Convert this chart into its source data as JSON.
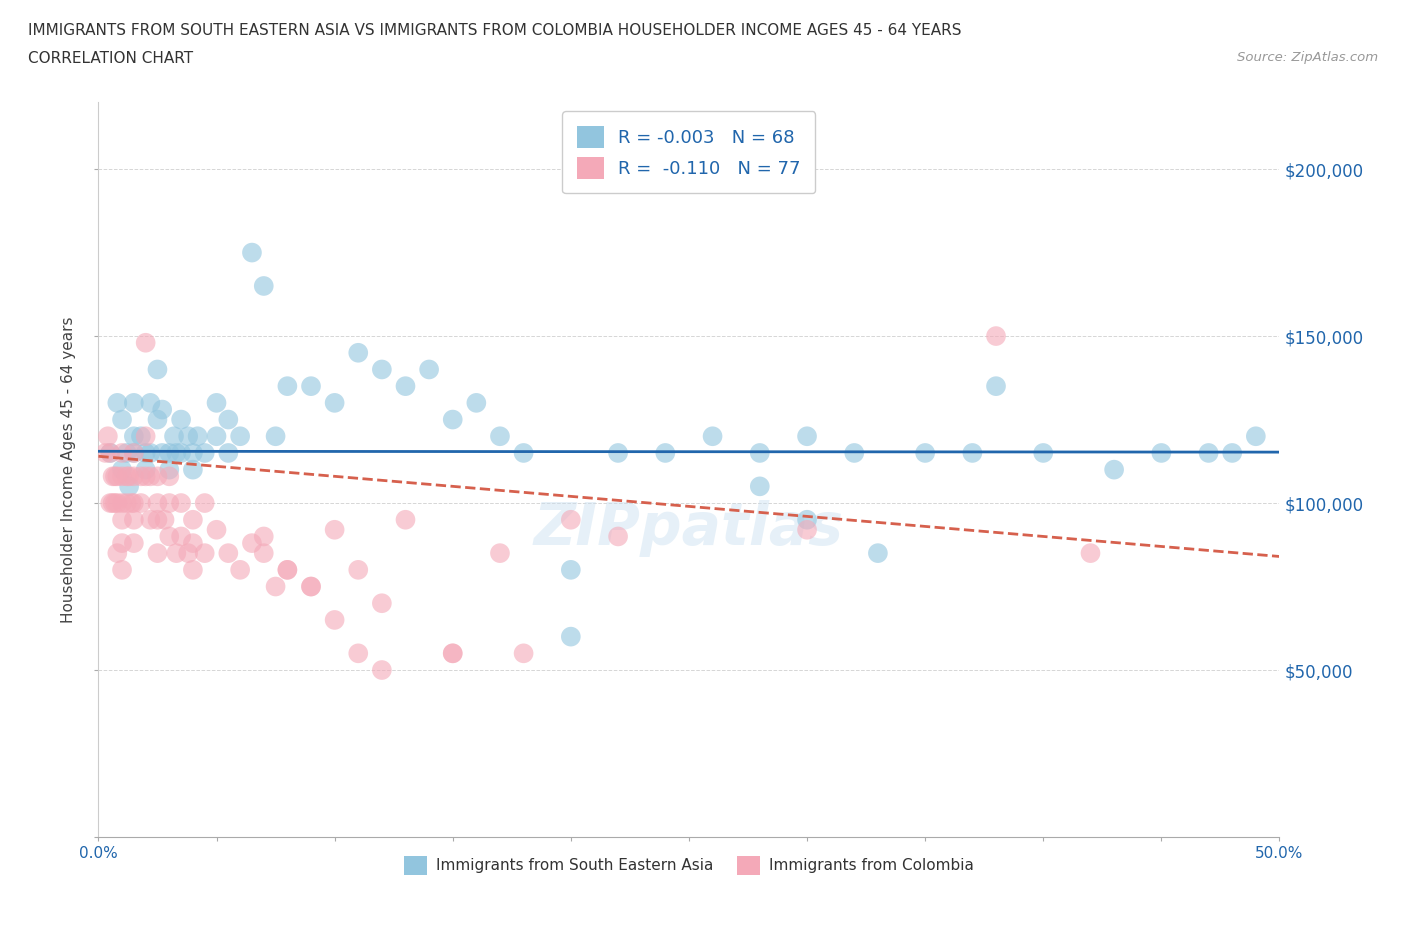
{
  "title_line1": "IMMIGRANTS FROM SOUTH EASTERN ASIA VS IMMIGRANTS FROM COLOMBIA HOUSEHOLDER INCOME AGES 45 - 64 YEARS",
  "title_line2": "CORRELATION CHART",
  "source_text": "Source: ZipAtlas.com",
  "ylabel": "Householder Income Ages 45 - 64 years",
  "xlim": [
    0.0,
    0.5
  ],
  "ylim": [
    0,
    220000
  ],
  "yticks": [
    0,
    50000,
    100000,
    150000,
    200000
  ],
  "right_yticklabels": [
    "",
    "$50,000",
    "$100,000",
    "$150,000",
    "$200,000"
  ],
  "blue_color": "#92c5de",
  "pink_color": "#f4a9b8",
  "blue_line_color": "#2166ac",
  "pink_line_color": "#d6604d",
  "blue_scatter_x": [
    0.005,
    0.008,
    0.01,
    0.01,
    0.012,
    0.013,
    0.015,
    0.015,
    0.015,
    0.018,
    0.02,
    0.02,
    0.022,
    0.022,
    0.025,
    0.025,
    0.027,
    0.027,
    0.03,
    0.03,
    0.032,
    0.033,
    0.035,
    0.035,
    0.038,
    0.04,
    0.04,
    0.042,
    0.045,
    0.05,
    0.05,
    0.055,
    0.055,
    0.06,
    0.065,
    0.07,
    0.075,
    0.08,
    0.09,
    0.1,
    0.11,
    0.12,
    0.13,
    0.14,
    0.15,
    0.16,
    0.17,
    0.18,
    0.2,
    0.22,
    0.24,
    0.26,
    0.28,
    0.3,
    0.32,
    0.35,
    0.37,
    0.4,
    0.43,
    0.45,
    0.47,
    0.48,
    0.49,
    0.38,
    0.28,
    0.3,
    0.33,
    0.2
  ],
  "blue_scatter_y": [
    115000,
    130000,
    125000,
    110000,
    115000,
    105000,
    130000,
    120000,
    115000,
    120000,
    115000,
    110000,
    130000,
    115000,
    140000,
    125000,
    128000,
    115000,
    115000,
    110000,
    120000,
    115000,
    125000,
    115000,
    120000,
    115000,
    110000,
    120000,
    115000,
    130000,
    120000,
    125000,
    115000,
    120000,
    175000,
    165000,
    120000,
    135000,
    135000,
    130000,
    145000,
    140000,
    135000,
    140000,
    125000,
    130000,
    120000,
    115000,
    80000,
    115000,
    115000,
    120000,
    115000,
    120000,
    115000,
    115000,
    115000,
    115000,
    110000,
    115000,
    115000,
    115000,
    120000,
    135000,
    105000,
    95000,
    85000,
    60000
  ],
  "pink_scatter_x": [
    0.003,
    0.004,
    0.005,
    0.005,
    0.006,
    0.006,
    0.007,
    0.007,
    0.008,
    0.008,
    0.008,
    0.01,
    0.01,
    0.01,
    0.01,
    0.01,
    0.01,
    0.012,
    0.012,
    0.013,
    0.014,
    0.015,
    0.015,
    0.015,
    0.015,
    0.015,
    0.018,
    0.018,
    0.02,
    0.02,
    0.02,
    0.022,
    0.022,
    0.025,
    0.025,
    0.025,
    0.025,
    0.028,
    0.03,
    0.03,
    0.03,
    0.033,
    0.035,
    0.035,
    0.038,
    0.04,
    0.04,
    0.04,
    0.045,
    0.05,
    0.055,
    0.06,
    0.065,
    0.07,
    0.075,
    0.08,
    0.09,
    0.1,
    0.11,
    0.12,
    0.13,
    0.15,
    0.17,
    0.2,
    0.22,
    0.3,
    0.38,
    0.42,
    0.045,
    0.07,
    0.08,
    0.09,
    0.1,
    0.11,
    0.12,
    0.15,
    0.18
  ],
  "pink_scatter_y": [
    115000,
    120000,
    115000,
    100000,
    108000,
    100000,
    108000,
    100000,
    108000,
    100000,
    85000,
    115000,
    108000,
    100000,
    95000,
    88000,
    80000,
    108000,
    100000,
    108000,
    100000,
    115000,
    108000,
    100000,
    95000,
    88000,
    108000,
    100000,
    148000,
    120000,
    108000,
    108000,
    95000,
    108000,
    100000,
    95000,
    85000,
    95000,
    108000,
    100000,
    90000,
    85000,
    100000,
    90000,
    85000,
    95000,
    88000,
    80000,
    85000,
    92000,
    85000,
    80000,
    88000,
    85000,
    75000,
    80000,
    75000,
    92000,
    80000,
    70000,
    95000,
    55000,
    85000,
    95000,
    90000,
    92000,
    150000,
    85000,
    100000,
    90000,
    80000,
    75000,
    65000,
    55000,
    50000,
    55000,
    55000
  ]
}
